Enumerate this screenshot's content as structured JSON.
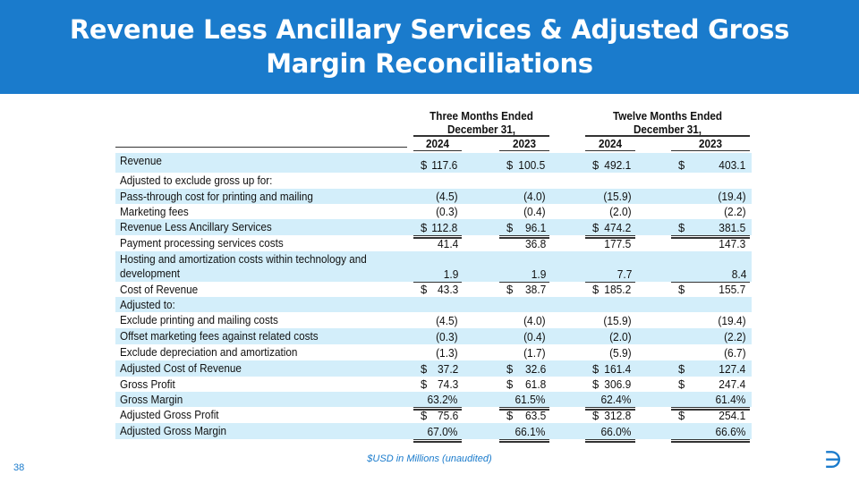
{
  "title_line1": "Revenue Less Ancillary Services & Adjusted Gross",
  "title_line2": "Margin Reconciliations",
  "groups": [
    {
      "line1": "Three Months Ended",
      "line2": "December 31,"
    },
    {
      "line1": "Twelve Months Ended",
      "line2": "December 31,"
    }
  ],
  "years": [
    "2024",
    "2023",
    "2024",
    "2023"
  ],
  "rows": [
    {
      "label": "Revenue",
      "dollar": true,
      "values": [
        "117.6",
        "100.5",
        "492.1",
        "403.1"
      ],
      "shade": true
    },
    {
      "label": "Adjusted to exclude gross up for:",
      "dollar": false,
      "values": [],
      "shade": false
    },
    {
      "label": "Pass-through cost for printing and mailing",
      "dollar": false,
      "values": [
        "(4.5)",
        "(4.0)",
        "(15.9)",
        "(19.4)"
      ],
      "shade": true
    },
    {
      "label": "Marketing fees",
      "dollar": false,
      "values": [
        "(0.3)",
        "(0.4)",
        "(2.0)",
        "(2.2)"
      ],
      "shade": false,
      "under": "single"
    },
    {
      "label": "Revenue Less Ancillary Services",
      "dollar": true,
      "values": [
        "112.8",
        "96.1",
        "474.2",
        "381.5"
      ],
      "shade": true,
      "under": "double"
    },
    {
      "label": "Payment processing services costs",
      "dollar": false,
      "values": [
        "41.4",
        "36.8",
        "177.5",
        "147.3"
      ],
      "shade": false
    },
    {
      "label": "Hosting and amortization costs within technology and development",
      "dollar": false,
      "values": [
        "1.9",
        "1.9",
        "7.7",
        "8.4"
      ],
      "shade": true,
      "under": "single"
    },
    {
      "label": "Cost of Revenue",
      "dollar": true,
      "values": [
        "43.3",
        "38.7",
        "185.2",
        "155.7"
      ],
      "shade": false,
      "under": "double"
    },
    {
      "label": "Adjusted to:",
      "dollar": false,
      "values": [],
      "shade": true
    },
    {
      "label": "Exclude printing and mailing costs",
      "dollar": false,
      "values": [
        "(4.5)",
        "(4.0)",
        "(15.9)",
        "(19.4)"
      ],
      "shade": false
    },
    {
      "label": "Offset marketing fees against related costs",
      "dollar": false,
      "values": [
        "(0.3)",
        "(0.4)",
        "(2.0)",
        "(2.2)"
      ],
      "shade": true
    },
    {
      "label": "Exclude depreciation and amortization",
      "dollar": false,
      "values": [
        "(1.3)",
        "(1.7)",
        "(5.9)",
        "(6.7)"
      ],
      "shade": false,
      "under": "single"
    },
    {
      "label": "Adjusted Cost of Revenue",
      "dollar": true,
      "values": [
        "37.2",
        "32.6",
        "161.4",
        "127.4"
      ],
      "shade": true
    },
    {
      "label": "Gross Profit",
      "dollar": true,
      "values": [
        "74.3",
        "61.8",
        "306.9",
        "247.4"
      ],
      "shade": false
    },
    {
      "label": "Gross Margin",
      "dollar": false,
      "values": [
        "63.2%",
        "61.5%",
        "62.4%",
        "61.4%"
      ],
      "shade": true,
      "under": "double"
    },
    {
      "label": "Adjusted Gross Profit",
      "dollar": true,
      "values": [
        "75.6",
        "63.5",
        "312.8",
        "254.1"
      ],
      "shade": false
    },
    {
      "label": "Adjusted Gross Margin",
      "dollar": false,
      "values": [
        "67.0%",
        "66.1%",
        "66.0%",
        "66.6%"
      ],
      "shade": true,
      "under": "double"
    }
  ],
  "dollar_sign": "$",
  "footnote": "$USD in Millions (unaudited)",
  "page_number": "38",
  "logo_text": "f",
  "colors": {
    "brand": "#1a7bcc",
    "row_shade": "#d3eefa"
  }
}
